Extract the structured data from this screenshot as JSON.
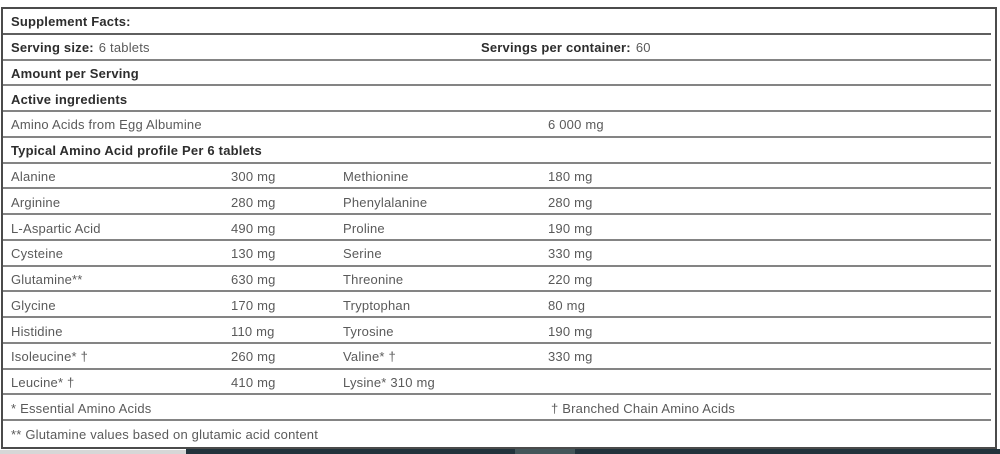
{
  "table": {
    "title": "Supplement Facts:",
    "serving_size_label": "Serving size:",
    "serving_size_value": "6 tablets",
    "servings_per_container_label": "Servings per container:",
    "servings_per_container_value": "60",
    "amount_per_serving": "Amount per Serving",
    "active_ingredients_header": "Active ingredients",
    "active_row": {
      "name": "Amino Acids from Egg Albumine",
      "amount": "6 000 mg"
    },
    "profile_header": "Typical Amino Acid profile Per 6 tablets",
    "amino_rows": [
      {
        "l_name": "Alanine",
        "l_amt": "300 mg",
        "r_name": "Methionine",
        "r_amt": "180 mg"
      },
      {
        "l_name": "Arginine",
        "l_amt": "280 mg",
        "r_name": "Phenylalanine",
        "r_amt": "280 mg"
      },
      {
        "l_name": "L-Aspartic Acid",
        "l_amt": "490 mg",
        "r_name": "Proline",
        "r_amt": "190 mg"
      },
      {
        "l_name": "Cysteine",
        "l_amt": "130 mg",
        "r_name": "Serine",
        "r_amt": "330 mg"
      },
      {
        "l_name": "Glutamine**",
        "l_amt": "630 mg",
        "r_name": "Threonine",
        "r_amt": "220 mg"
      },
      {
        "l_name": "Glycine",
        "l_amt": "170 mg",
        "r_name": "Tryptophan",
        "r_amt": "80 mg"
      },
      {
        "l_name": "Histidine",
        "l_amt": "110 mg",
        "r_name": "Tyrosine",
        "r_amt": "190 mg"
      },
      {
        "l_name": "Isoleucine* †",
        "l_amt": "260 mg",
        "r_name": "Valine* †",
        "r_amt": "330 mg"
      },
      {
        "l_name": "Leucine* †",
        "l_amt": "410 mg",
        "r_name": "Lysine* 310 mg",
        "r_amt": ""
      }
    ],
    "footnote_left": "* Essential Amino Acids",
    "footnote_right": "† Branched Chain Amino Acids",
    "footnote_bottom": "** Glutamine values based on glutamic acid content"
  },
  "colors": {
    "table_border": "#4b4b4b",
    "row_divider": "#848484",
    "bold_text": "#2d2d2d",
    "regular_text": "#5a5a5a",
    "strip_dark": "#22333c",
    "strip_light": "#d7d7d7",
    "strip_accent": "#44565a"
  }
}
